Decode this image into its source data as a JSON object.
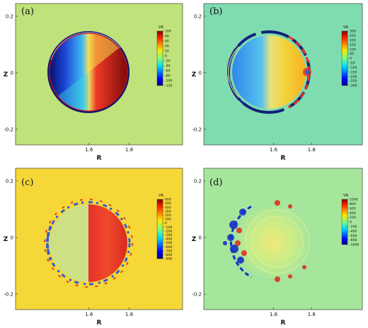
{
  "chart_data": [
    {
      "type": "heatmap",
      "panel_label": "(a)",
      "xlabel": "R",
      "ylabel": "Z",
      "x_ticks": [
        "1.6",
        "1.8"
      ],
      "y_ticks": [
        "0.2",
        "0",
        "-0.2"
      ],
      "background_color": "#bfe27a",
      "colorbar_title": "VR",
      "colorbar_labels": [
        "100",
        "80",
        "60",
        "40",
        "20",
        "0",
        "-20",
        "-40",
        "-60",
        "-80",
        "-100",
        "-120"
      ],
      "colorbar_range": [
        -120,
        100
      ],
      "pattern": "filled-disk"
    },
    {
      "type": "heatmap",
      "panel_label": "(b)",
      "xlabel": "R",
      "ylabel": "Z",
      "x_ticks": [
        "1.6",
        "1.8"
      ],
      "y_ticks": [
        "0.2",
        "0",
        "-0.2"
      ],
      "background_color": "#7fdcb0",
      "colorbar_title": "VR",
      "colorbar_labels": [
        "300",
        "250",
        "200",
        "150",
        "100",
        "50",
        "0",
        "-50",
        "-100",
        "-150",
        "-200",
        "-250",
        "-300"
      ],
      "colorbar_range": [
        -300,
        300
      ],
      "pattern": "ring-with-interior"
    },
    {
      "type": "heatmap",
      "panel_label": "(c)",
      "xlabel": "R",
      "ylabel": "Z",
      "x_ticks": [
        "1.6",
        "1.8"
      ],
      "y_ticks": [
        "0.2",
        "0",
        "-0.2"
      ],
      "background_color": "#f5d838",
      "colorbar_title": "VR",
      "colorbar_labels": [
        "600",
        "500",
        "400",
        "300",
        "200",
        "100",
        "0",
        "-100",
        "-200",
        "-300",
        "-400",
        "-500",
        "-600",
        "-700",
        "-800",
        "-900"
      ],
      "colorbar_range": [
        -900,
        600
      ],
      "pattern": "half-disk"
    },
    {
      "type": "heatmap",
      "panel_label": "(d)",
      "xlabel": "R",
      "ylabel": "Z",
      "x_ticks": [
        "1.6",
        "1.8"
      ],
      "y_ticks": [
        "0.2",
        "0",
        "-0.2"
      ],
      "background_color": "#a6e69c",
      "colorbar_title": "VR",
      "colorbar_labels": [
        "1000",
        "800",
        "600",
        "400",
        "200",
        "0",
        "-200",
        "-400",
        "-600",
        "-800",
        "-1000"
      ],
      "colorbar_range": [
        -1000,
        1000
      ],
      "pattern": "blobs"
    }
  ]
}
